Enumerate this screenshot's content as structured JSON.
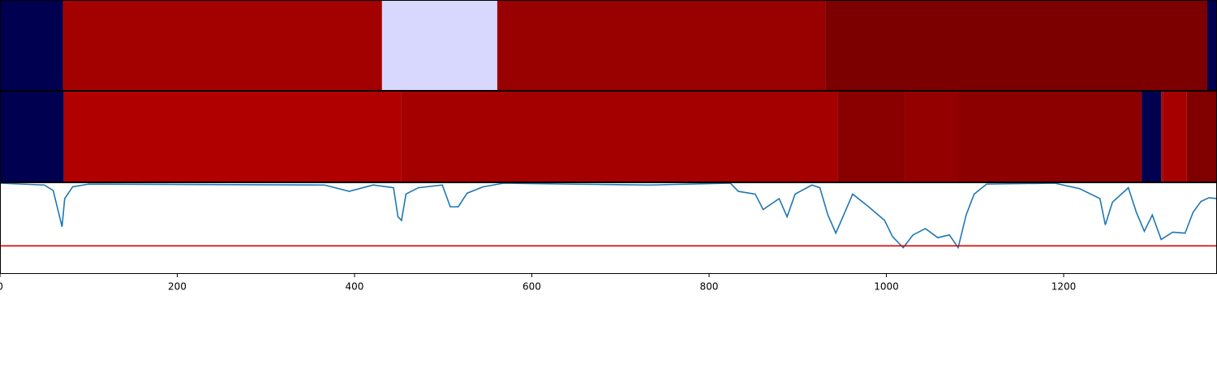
{
  "chart_data": [
    {
      "type": "strip",
      "xlim": [
        0,
        1373
      ],
      "x_edges": [
        0,
        71,
        431,
        561,
        931,
        1362,
        1373
      ],
      "colors": [
        "#000050",
        "#a30000",
        "#d8d8ff",
        "#990000",
        "#7d0000",
        "#000050"
      ]
    },
    {
      "type": "strip",
      "xlim": [
        0,
        1373
      ],
      "x_edges": [
        0,
        72,
        453,
        945,
        1021,
        1081,
        1288,
        1310,
        1312,
        1339,
        1373
      ],
      "colors": [
        "#000050",
        "#b00000",
        "#a50000",
        "#8a0000",
        "#940000",
        "#8c0000",
        "#000050",
        "#a00000",
        "#a60000",
        "#800000"
      ]
    },
    {
      "type": "line",
      "xlim": [
        0,
        1373
      ],
      "ylim": [
        0,
        1
      ],
      "xticks": [
        0,
        200,
        400,
        600,
        800,
        1000,
        1200
      ],
      "hline": 0.31,
      "hline_color": "#e00000",
      "series": [
        {
          "color": "#1f77b4",
          "x": [
            0,
            50,
            60,
            66,
            70,
            73,
            82,
            100,
            366,
            394,
            421,
            444,
            449,
            453,
            458,
            472,
            499,
            508,
            517,
            527,
            545,
            568,
            641,
            733,
            824,
            833,
            852,
            861,
            879,
            888,
            897,
            916,
            925,
            934,
            943,
            962,
            980,
            998,
            1007,
            1019,
            1030,
            1044,
            1058,
            1071,
            1081,
            1090,
            1099,
            1113,
            1190,
            1218,
            1241,
            1247,
            1255,
            1273,
            1282,
            1291,
            1300,
            1310,
            1323,
            1337,
            1346,
            1355,
            1364,
            1373
          ],
          "values": [
            1.0,
            0.98,
            0.92,
            0.68,
            0.52,
            0.83,
            0.96,
            0.99,
            0.98,
            0.91,
            0.98,
            0.95,
            0.63,
            0.59,
            0.88,
            0.95,
            0.98,
            0.74,
            0.74,
            0.89,
            0.96,
            1.0,
            0.99,
            0.98,
            1.0,
            0.91,
            0.88,
            0.71,
            0.83,
            0.63,
            0.88,
            0.98,
            0.95,
            0.65,
            0.45,
            0.88,
            0.74,
            0.59,
            0.41,
            0.29,
            0.43,
            0.5,
            0.4,
            0.43,
            0.29,
            0.65,
            0.88,
            0.99,
            1.0,
            0.94,
            0.83,
            0.54,
            0.79,
            0.95,
            0.68,
            0.47,
            0.65,
            0.38,
            0.46,
            0.45,
            0.68,
            0.8,
            0.84,
            0.83
          ]
        }
      ]
    }
  ]
}
